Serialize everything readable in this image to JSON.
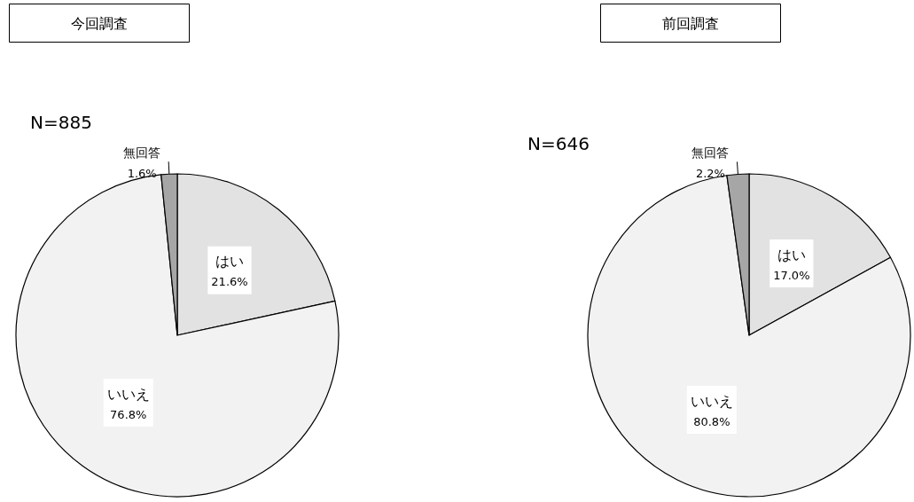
{
  "chart_data": [
    {
      "type": "pie",
      "title": "今回調査",
      "annotations": [
        "N=885"
      ],
      "categories": [
        "はい",
        "いいえ",
        "無回答"
      ],
      "values": [
        21.6,
        76.8,
        1.6
      ],
      "colors": [
        "#e2e2e2",
        "#f2f2f2",
        "#a6a6a6"
      ],
      "value_labels": [
        "21.6%",
        "76.8%",
        "1.6%"
      ],
      "legend": false
    },
    {
      "type": "pie",
      "title": "前回調査",
      "annotations": [
        "N=646"
      ],
      "categories": [
        "はい",
        "いいえ",
        "無回答"
      ],
      "values": [
        17.0,
        80.8,
        2.2
      ],
      "colors": [
        "#e2e2e2",
        "#f2f2f2",
        "#a6a6a6"
      ],
      "value_labels": [
        "17.0%",
        "80.8%",
        "2.2%"
      ],
      "legend": false
    }
  ]
}
